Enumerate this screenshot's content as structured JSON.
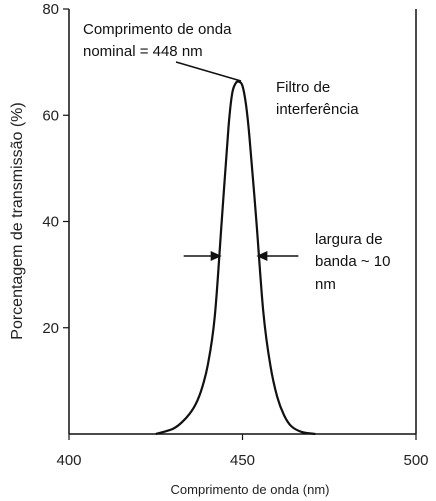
{
  "chart_data": {
    "type": "line",
    "xlabel": "Comprimento de onda (nm)",
    "ylabel": "Porcentagem de transmissão (%)",
    "xlim": [
      400,
      500
    ],
    "ylim": [
      0,
      80
    ],
    "x_ticks": [
      400,
      450,
      500
    ],
    "y_ticks": [
      20,
      40,
      60,
      80
    ],
    "grid": false,
    "legend": "none",
    "series": [
      {
        "x": [
          425,
          430,
          433,
          436,
          438,
          440,
          442,
          444,
          446,
          447,
          448,
          449,
          450,
          451,
          452,
          454,
          456,
          458,
          460,
          462,
          464,
          467,
          471
        ],
        "y": [
          0,
          1,
          2.5,
          5,
          8,
          13,
          22,
          40,
          58,
          64,
          66,
          66.3,
          65.5,
          62,
          56,
          40,
          23,
          13,
          7,
          3.5,
          1.5,
          0.4,
          0
        ]
      }
    ],
    "annotations": {
      "peak": {
        "line1": "Comprimento de onda",
        "line2": "nominal = 448 nm"
      },
      "filter": {
        "line1": "Filtro de",
        "line2": "interferência"
      },
      "bandwidth": {
        "line1": "largura de",
        "line2": "banda ~ 10",
        "line3": "nm"
      }
    },
    "bandwidth_nm": [
      444,
      454
    ]
  }
}
